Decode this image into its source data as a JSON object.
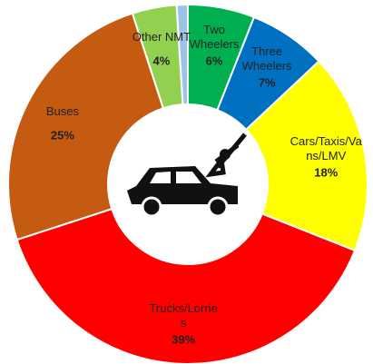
{
  "chart_data": {
    "type": "donut",
    "categories": [
      null,
      "Two Wheelers",
      "Three Wheelers",
      "Cars/Taxis/Vans/LMV",
      "Trucks/Lorries",
      "Buses",
      "Other NMT"
    ],
    "values": [
      1,
      6,
      7,
      18,
      39,
      25,
      4
    ],
    "value_labels": [
      null,
      "6%",
      "7%",
      "18%",
      "39%",
      "25%",
      "4%"
    ],
    "colors": [
      "#9dc3e6",
      "#00b050",
      "#0070c0",
      "#ffff00",
      "#ff0000",
      "#c55a11",
      "#92d050"
    ]
  }
}
